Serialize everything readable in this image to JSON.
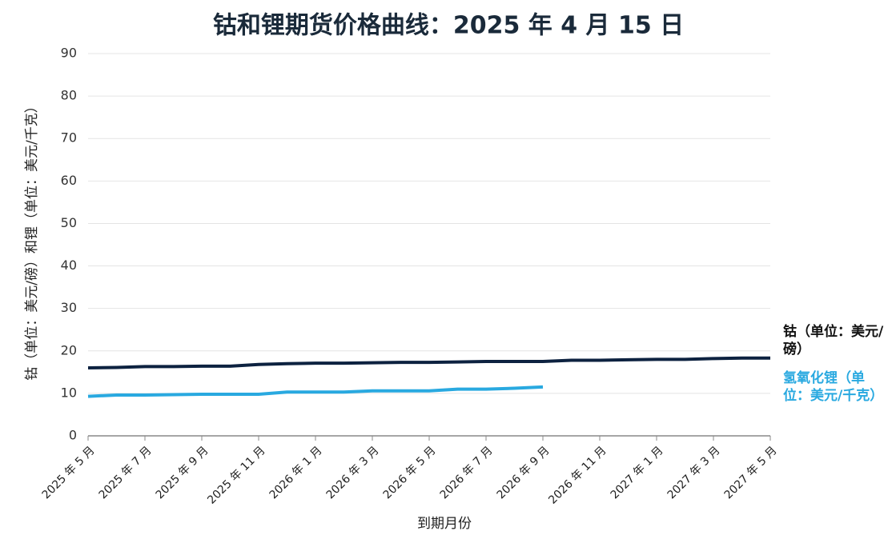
{
  "chart_data": {
    "type": "line",
    "title": "钴和锂期货价格曲线：2025 年 4 月 15 日",
    "x_label": "到期月份",
    "y_label": "钴（单位：美元/磅）和锂（单位：美元/千克）",
    "categories": [
      "2025 年 5 月",
      null,
      "2025 年 7 月",
      null,
      "2025 年 9 月",
      null,
      "2025 年 11 月",
      null,
      "2026 年 1 月",
      null,
      "2026 年 3 月",
      null,
      "2026 年 5 月",
      null,
      "2026 年 7 月",
      null,
      "2026 年 9 月",
      null,
      "2026 年 11 月",
      null,
      "2027 年 1 月",
      null,
      "2027 年 3 月",
      null,
      "2027 年 5 月"
    ],
    "series": [
      {
        "name": "钴（单位：美元/磅）",
        "color": "#0d2240",
        "values": [
          16,
          16.1,
          16.3,
          16.3,
          16.4,
          16.4,
          16.8,
          17.0,
          17.1,
          17.1,
          17.2,
          17.3,
          17.3,
          17.4,
          17.5,
          17.5,
          17.5,
          17.8,
          17.8,
          17.9,
          18.0,
          18.0,
          18.2,
          18.3,
          18.3
        ]
      },
      {
        "name": "氢氧化锂（单位：美元/千克）",
        "color": "#29a9e0",
        "values": [
          9.3,
          9.6,
          9.6,
          9.7,
          9.8,
          9.8,
          9.8,
          10.3,
          10.3,
          10.3,
          10.6,
          10.6,
          10.6,
          11.0,
          11.0,
          11.2,
          11.5,
          null,
          null,
          null,
          null,
          null,
          null,
          null,
          null
        ]
      }
    ],
    "ylim": [
      0,
      90
    ],
    "yticks": [
      0,
      10,
      20,
      30,
      40,
      50,
      60,
      70,
      80,
      90
    ],
    "grid": true
  }
}
